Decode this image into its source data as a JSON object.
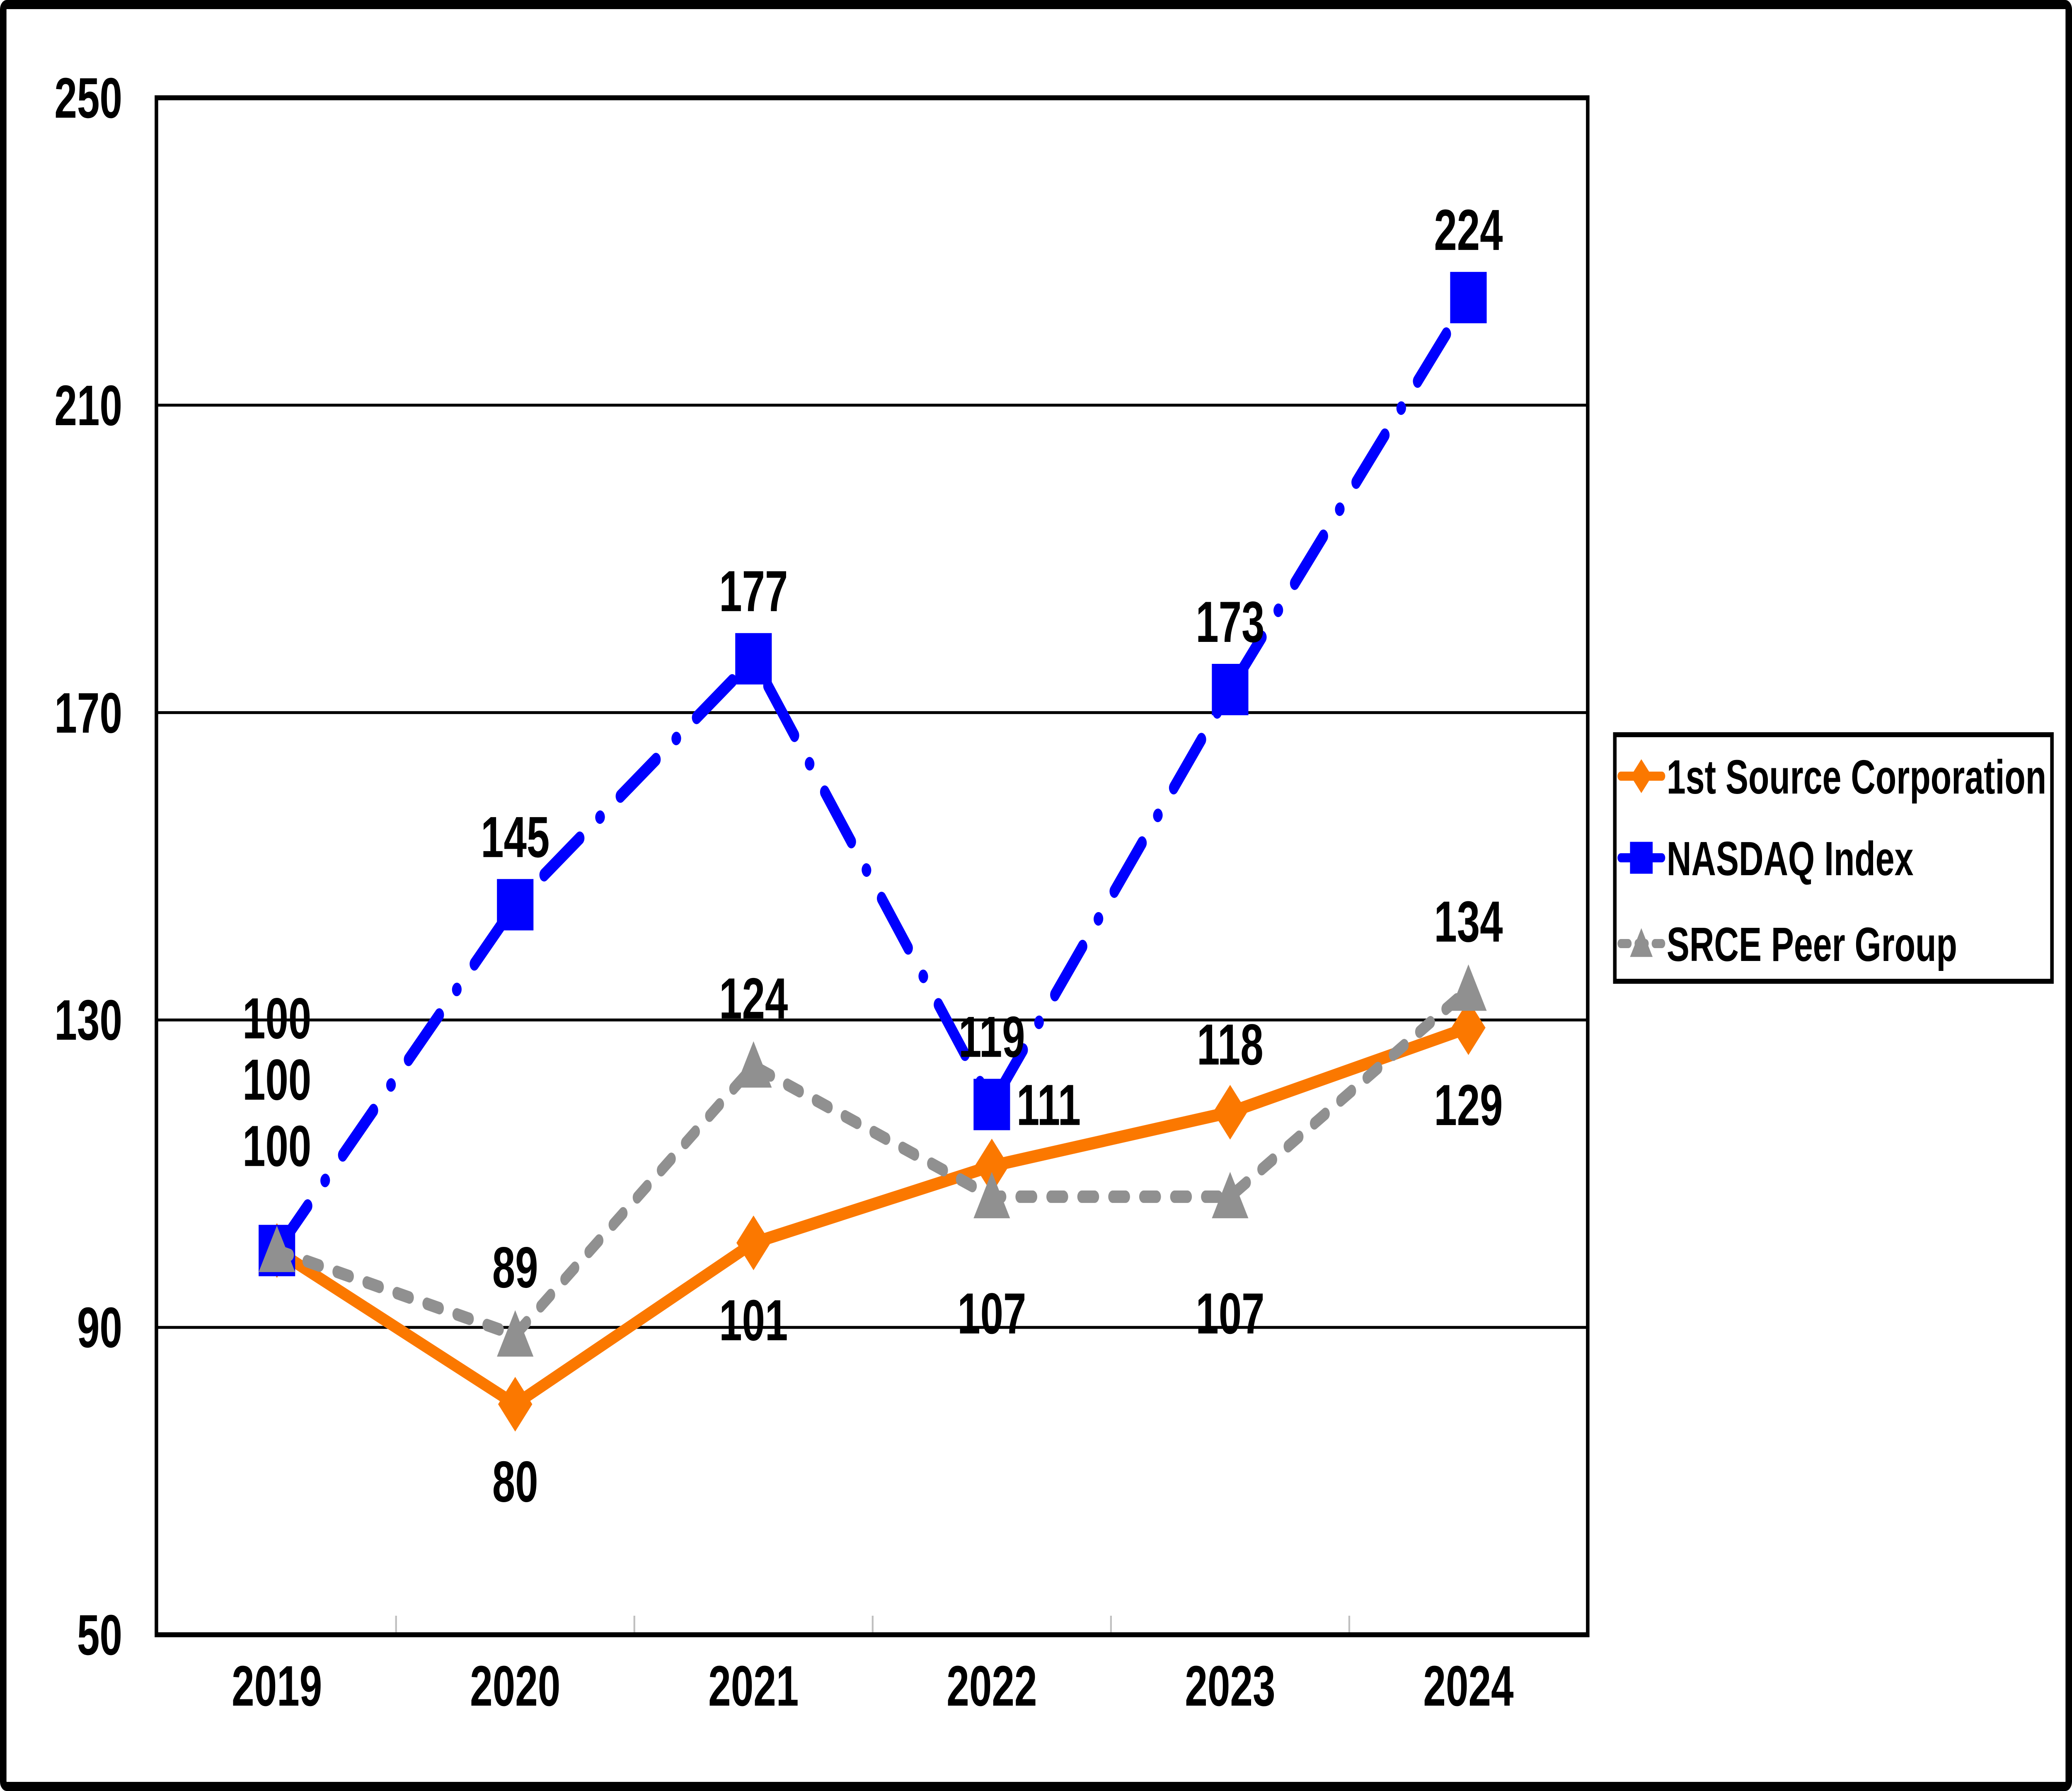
{
  "chart_data": {
    "type": "line",
    "title": "",
    "categories": [
      "2019",
      "2020",
      "2021",
      "2022",
      "2023",
      "2024"
    ],
    "series": [
      {
        "name": "1st Source Corporation",
        "values": [
          100,
          80,
          101,
          111,
          118,
          129
        ],
        "color": "#FB7800",
        "marker": "diamond",
        "line_style": "solid",
        "label_positions": [
          "stack",
          "below",
          "below",
          "right",
          "above",
          "below"
        ]
      },
      {
        "name": "NASDAQ Index",
        "values": [
          100,
          145,
          177,
          119,
          173,
          224
        ],
        "color": "#0000FE",
        "marker": "square",
        "line_style": "dash-dot",
        "label_positions": [
          "stack",
          "above",
          "above",
          "above",
          "above",
          "above"
        ]
      },
      {
        "name": "SRCE Peer Group",
        "values": [
          100,
          89,
          124,
          107,
          107,
          134
        ],
        "color": "#909090",
        "marker": "triangle",
        "line_style": "dashed",
        "label_positions": [
          "stack",
          "above",
          "above",
          "below-far",
          "below-far",
          "above"
        ]
      }
    ],
    "y_ticks": [
      50,
      90,
      130,
      170,
      210,
      250
    ],
    "ylim": [
      50,
      250
    ],
    "xlabel": "",
    "ylabel": "",
    "grid": "horizontal",
    "legend_position": "right",
    "text_color": "#000000",
    "border_color": "#000000",
    "gridline_color": "#000000",
    "category_tick_color": "#BFBFBF",
    "background_color": "#FFFFFF"
  }
}
